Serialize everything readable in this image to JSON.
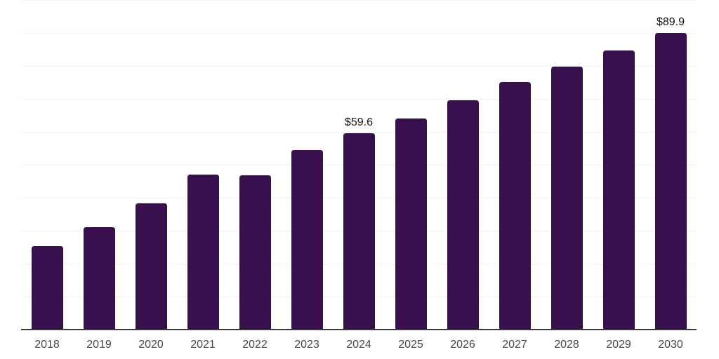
{
  "chart_data": {
    "type": "bar",
    "title": "",
    "xlabel": "",
    "ylabel": "",
    "categories": [
      "2018",
      "2019",
      "2020",
      "2021",
      "2022",
      "2023",
      "2024",
      "2025",
      "2026",
      "2027",
      "2028",
      "2029",
      "2030"
    ],
    "values": [
      25.4,
      31.0,
      38.3,
      47.0,
      46.8,
      54.5,
      59.6,
      64.0,
      69.6,
      75.1,
      79.8,
      84.6,
      89.9
    ],
    "data_labels": [
      null,
      null,
      null,
      null,
      null,
      null,
      "$59.6",
      null,
      null,
      null,
      null,
      null,
      "$89.9"
    ],
    "ylim": [
      0,
      100
    ],
    "gridline_step": 10,
    "grid": true,
    "legend": "none",
    "colors": {
      "bar": "#37104d",
      "axis_line": "#3a3a3a",
      "gridline": "#f0f0f0",
      "tick_label": "#474747",
      "data_label": "#111111",
      "background": "#ffffff"
    }
  }
}
